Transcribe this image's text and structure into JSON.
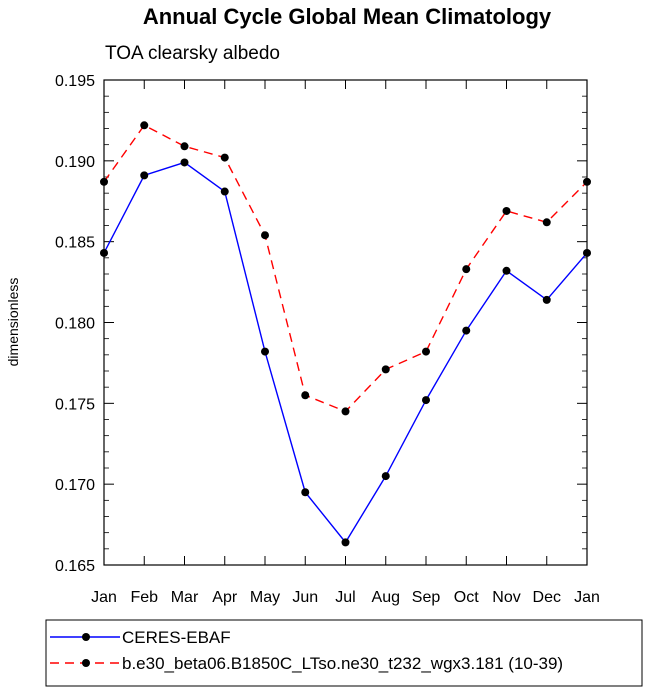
{
  "chart_data": {
    "type": "line",
    "title": "Annual Cycle Global Mean Climatology",
    "subtitle": "TOA clearsky albedo",
    "xlabel": "",
    "ylabel": "dimensionless",
    "categories": [
      "Jan",
      "Feb",
      "Mar",
      "Apr",
      "May",
      "Jun",
      "Jul",
      "Aug",
      "Sep",
      "Oct",
      "Nov",
      "Dec",
      "Jan"
    ],
    "ylim": [
      0.165,
      0.195
    ],
    "yticks": [
      "0.165",
      "0.170",
      "0.175",
      "0.180",
      "0.185",
      "0.190",
      "0.195"
    ],
    "ytick_values": [
      0.165,
      0.17,
      0.175,
      0.18,
      0.185,
      0.19,
      0.195
    ],
    "minor_y_step": 0.001,
    "grid": false,
    "legend_position": "bottom",
    "series": [
      {
        "name": "CERES-EBAF",
        "color": "#0000ff",
        "style": "solid",
        "marker": "circle",
        "values": [
          0.1843,
          0.1891,
          0.1899,
          0.1881,
          0.1782,
          0.1695,
          0.1664,
          0.1705,
          0.1752,
          0.1795,
          0.1832,
          0.1814,
          0.1843
        ]
      },
      {
        "name": "b.e30_beta06.B1850C_LTso.ne30_t232_wgx3.181 (10-39)",
        "color": "#ff0000",
        "style": "dashed",
        "marker": "circle",
        "values": [
          0.1887,
          0.1922,
          0.1909,
          0.1902,
          0.1854,
          0.1755,
          0.1745,
          0.1771,
          0.1782,
          0.1833,
          0.1869,
          0.1862,
          0.1887
        ]
      }
    ]
  }
}
